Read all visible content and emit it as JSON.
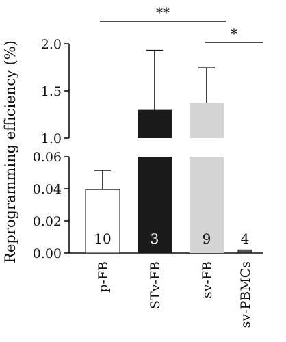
{
  "chart_data": {
    "type": "bar",
    "ylabel": "Reprogramming efficiency (%)",
    "axis_break": true,
    "grid": false,
    "categories": [
      "p-FB",
      "STv-FB",
      "sv-FB",
      "sv-PBMCs"
    ],
    "values": [
      0.0395,
      1.3,
      1.375,
      0.002
    ],
    "error_upper": [
      0.0515,
      1.93,
      1.745,
      0.0
    ],
    "n_labels": [
      "10",
      "3",
      "9",
      "4"
    ],
    "bar_colors": [
      "#ffffff",
      "#1a1a1a",
      "#d4d4d4",
      "#555555"
    ],
    "n_label_colors": [
      "#111111",
      "#ffffff",
      "#111111",
      "#111111"
    ],
    "upper_axis": {
      "ylim": [
        1.0,
        2.0
      ],
      "ticks": [
        "1.0",
        "1.5",
        "2.0"
      ]
    },
    "lower_axis": {
      "ylim": [
        0.0,
        0.06
      ],
      "ticks": [
        "0.00",
        "0.02",
        "0.04",
        "0.06"
      ]
    },
    "significance": [
      {
        "from": "p-FB",
        "to": "sv-FB",
        "label": "**"
      },
      {
        "from": "sv-FB",
        "to": "sv-PBMCs",
        "label": "*"
      }
    ]
  }
}
